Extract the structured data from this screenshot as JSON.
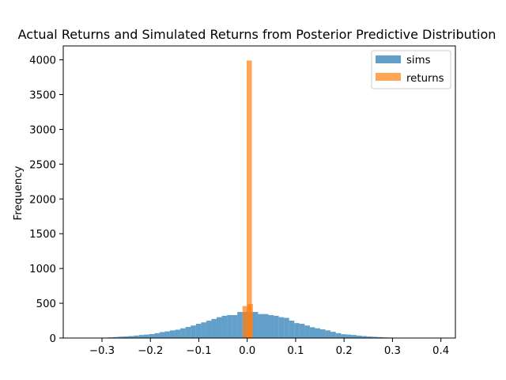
{
  "chart_data": {
    "type": "bar",
    "title": "Actual Returns and Simulated Returns from Posterior Predictive Distribution",
    "xlabel": "",
    "ylabel": "Frequency",
    "xlim": [
      -0.38,
      0.43
    ],
    "ylim": [
      0,
      4200
    ],
    "x_ticks": [
      -0.3,
      -0.2,
      -0.1,
      0.0,
      0.1,
      0.2,
      0.3,
      0.4
    ],
    "x_tick_labels": [
      "−0.3",
      "−0.2",
      "−0.1",
      "0.0",
      "0.1",
      "0.2",
      "0.3",
      "0.4"
    ],
    "y_ticks": [
      0,
      500,
      1000,
      1500,
      2000,
      2500,
      3000,
      3500,
      4000
    ],
    "y_tick_labels": [
      "0",
      "500",
      "1000",
      "1500",
      "2000",
      "2500",
      "3000",
      "3500",
      "4000"
    ],
    "grid": false,
    "legend_position": "top-right",
    "series": [
      {
        "name": "sims",
        "color": "#1f77b4",
        "alpha": 0.7,
        "bin_width": 0.0107,
        "bin_starts": [
          -0.32,
          -0.3093,
          -0.2986,
          -0.2879,
          -0.2772,
          -0.2665,
          -0.2558,
          -0.2451,
          -0.2344,
          -0.2237,
          -0.213,
          -0.2023,
          -0.1916,
          -0.1809,
          -0.1702,
          -0.1595,
          -0.1488,
          -0.1381,
          -0.1274,
          -0.1167,
          -0.106,
          -0.0953,
          -0.0846,
          -0.0739,
          -0.0632,
          -0.0525,
          -0.0418,
          -0.0311,
          -0.0204,
          -0.0097,
          0.001,
          0.0117,
          0.0224,
          0.0331,
          0.0438,
          0.0545,
          0.0652,
          0.0759,
          0.0866,
          0.0973,
          0.108,
          0.1187,
          0.1294,
          0.1401,
          0.1508,
          0.1615,
          0.1722,
          0.1829,
          0.1936,
          0.2043,
          0.215,
          0.2257,
          0.2364,
          0.2471,
          0.2578,
          0.2685,
          0.2792,
          0.2899,
          0.3006,
          0.3113,
          0.322,
          0.3327,
          0.3434
        ],
        "values": [
          2,
          4,
          6,
          10,
          14,
          20,
          24,
          28,
          36,
          44,
          50,
          58,
          70,
          86,
          96,
          110,
          120,
          140,
          160,
          180,
          205,
          225,
          250,
          275,
          300,
          320,
          330,
          330,
          375,
          375,
          375,
          375,
          345,
          345,
          330,
          320,
          300,
          290,
          250,
          215,
          205,
          180,
          155,
          140,
          125,
          110,
          90,
          70,
          55,
          50,
          44,
          35,
          28,
          22,
          18,
          14,
          10,
          7,
          5,
          4,
          3,
          2,
          1
        ]
      },
      {
        "name": "returns",
        "color": "#ff7f0e",
        "alpha": 0.7,
        "bin_width": 0.0107,
        "bin_starts": [
          -0.0204,
          -0.0097,
          -0.0011,
          0.001,
          0.0117
        ],
        "values": [
          0,
          460,
          3990,
          490,
          0
        ]
      }
    ]
  }
}
